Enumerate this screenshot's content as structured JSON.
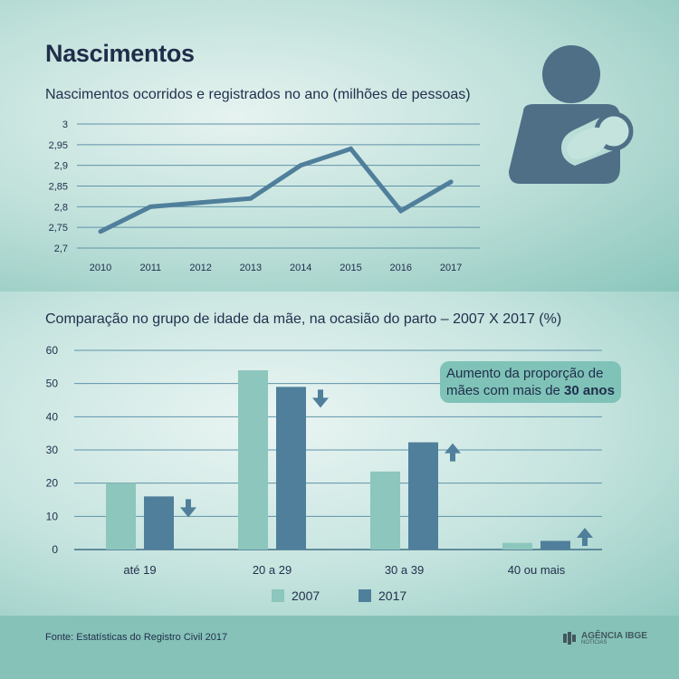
{
  "title": "Nascimentos",
  "colors": {
    "c2007": "#8cc6bd",
    "c2017": "#4f7f9b",
    "line": "#4f7f9b",
    "icon": "#4f6f86"
  },
  "footer": {
    "source": "Fonte: Estatísticas do Registro Civil 2017",
    "logo_main": "AGÊNCIA IBGE",
    "logo_sub": "NOTÍCIAS"
  },
  "callout": {
    "text_pre": "Aumento da proporção de mães com mais de ",
    "text_bold": "30 anos"
  },
  "icons": [
    "mother-baby-icon",
    "arrow-down-icon",
    "arrow-up-icon"
  ],
  "chart_data": [
    {
      "type": "line",
      "title": "Nascimentos ocorridos e registrados no ano (milhões de pessoas)",
      "x": [
        "2010",
        "2011",
        "2012",
        "2013",
        "2014",
        "2015",
        "2016",
        "2017"
      ],
      "values": [
        2.74,
        2.8,
        2.81,
        2.82,
        2.9,
        2.94,
        2.79,
        2.86
      ],
      "ylim": [
        2.7,
        3.0
      ],
      "yticks": [
        "2,7",
        "2,75",
        "2,8",
        "2,85",
        "2,9",
        "2,95",
        "3"
      ],
      "grid": true
    },
    {
      "type": "bar",
      "title": "Comparação no grupo de idade da mãe, na ocasião do parto – 2007 X 2017 (%)",
      "categories": [
        "até 19",
        "20 a 29",
        "30 a 39",
        "40 ou mais"
      ],
      "series": [
        {
          "name": "2007",
          "values": [
            20.0,
            54.0,
            23.5,
            2.0
          ]
        },
        {
          "name": "2017",
          "values": [
            16.0,
            49.0,
            32.3,
            2.6
          ]
        }
      ],
      "trend": [
        "down",
        "down",
        "up",
        "up"
      ],
      "ylim": [
        0,
        60
      ],
      "yticks": [
        "0",
        "10",
        "20",
        "30",
        "40",
        "50",
        "60"
      ],
      "legend": "bottom",
      "grid": true
    }
  ]
}
